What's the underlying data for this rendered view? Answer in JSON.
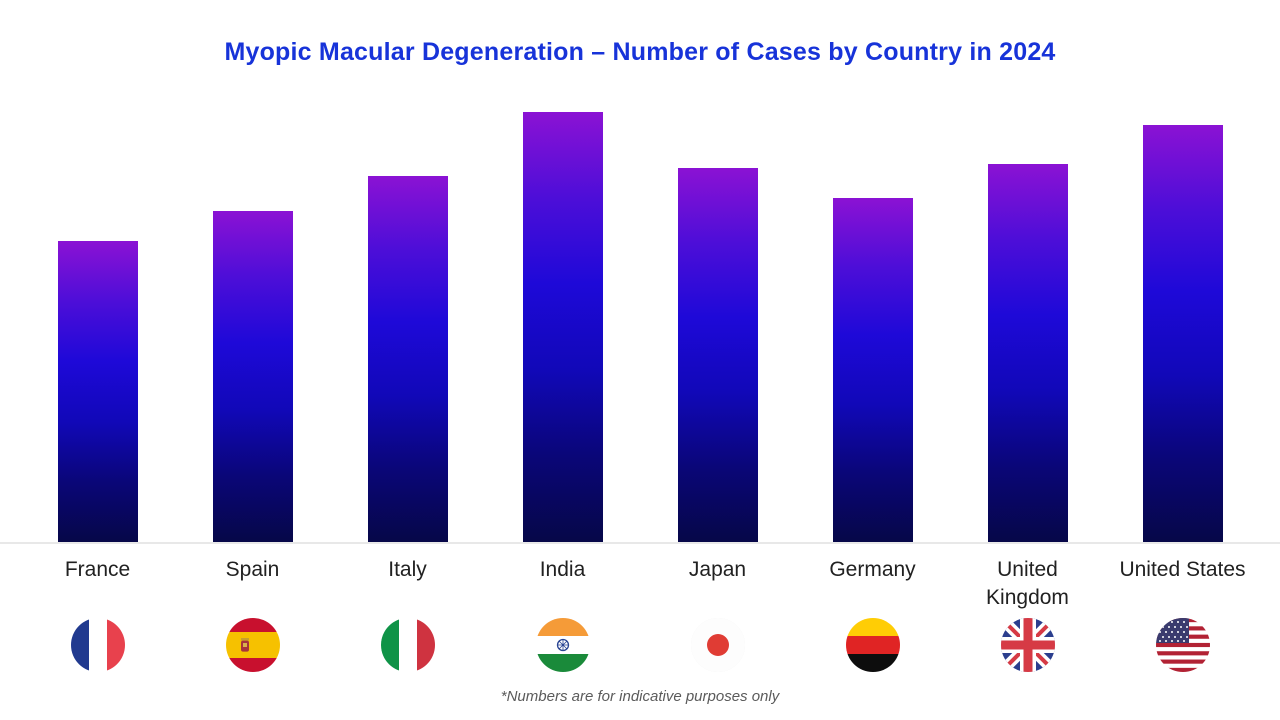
{
  "chart_data": {
    "type": "bar",
    "title": "Myopic Macular Degeneration – Number of Cases by Country in 2024",
    "categories": [
      "France",
      "Spain",
      "Italy",
      "India",
      "Japan",
      "Germany",
      "United Kingdom",
      "United States"
    ],
    "values": [
      70,
      77,
      85,
      100,
      87,
      80,
      88,
      97
    ],
    "values_unit": "percent of tallest bar (no numeric axis shown in chart)",
    "xlabel": "",
    "ylabel": "",
    "ylim": [
      0,
      100
    ],
    "grid": false,
    "legend": "none",
    "bar_gradient": [
      "#8b12d4",
      "#1e09d8",
      "#060748"
    ]
  },
  "columns": [
    {
      "label": "France",
      "flag_icon": "france-flag"
    },
    {
      "label": "Spain",
      "flag_icon": "spain-flag"
    },
    {
      "label": "Italy",
      "flag_icon": "italy-flag"
    },
    {
      "label": "India",
      "flag_icon": "india-flag"
    },
    {
      "label": "Japan",
      "flag_icon": "japan-flag"
    },
    {
      "label": "Germany",
      "flag_icon": "germany-flag"
    },
    {
      "label": "United Kingdom",
      "flag_icon": "uk-flag"
    },
    {
      "label": "United States",
      "flag_icon": "usa-flag"
    }
  ],
  "footnote": "*Numbers are for indicative purposes only",
  "colors": {
    "title_blue": "#1733d9",
    "bar_top_purple": "#8b12d4",
    "bar_mid_blue": "#1e09d8",
    "bar_bottom_navy": "#060748",
    "baseline_gray": "#e8e8e8",
    "label_color": "#212121",
    "footnote_gray": "#5b5b5b",
    "background": "#ffffff"
  }
}
